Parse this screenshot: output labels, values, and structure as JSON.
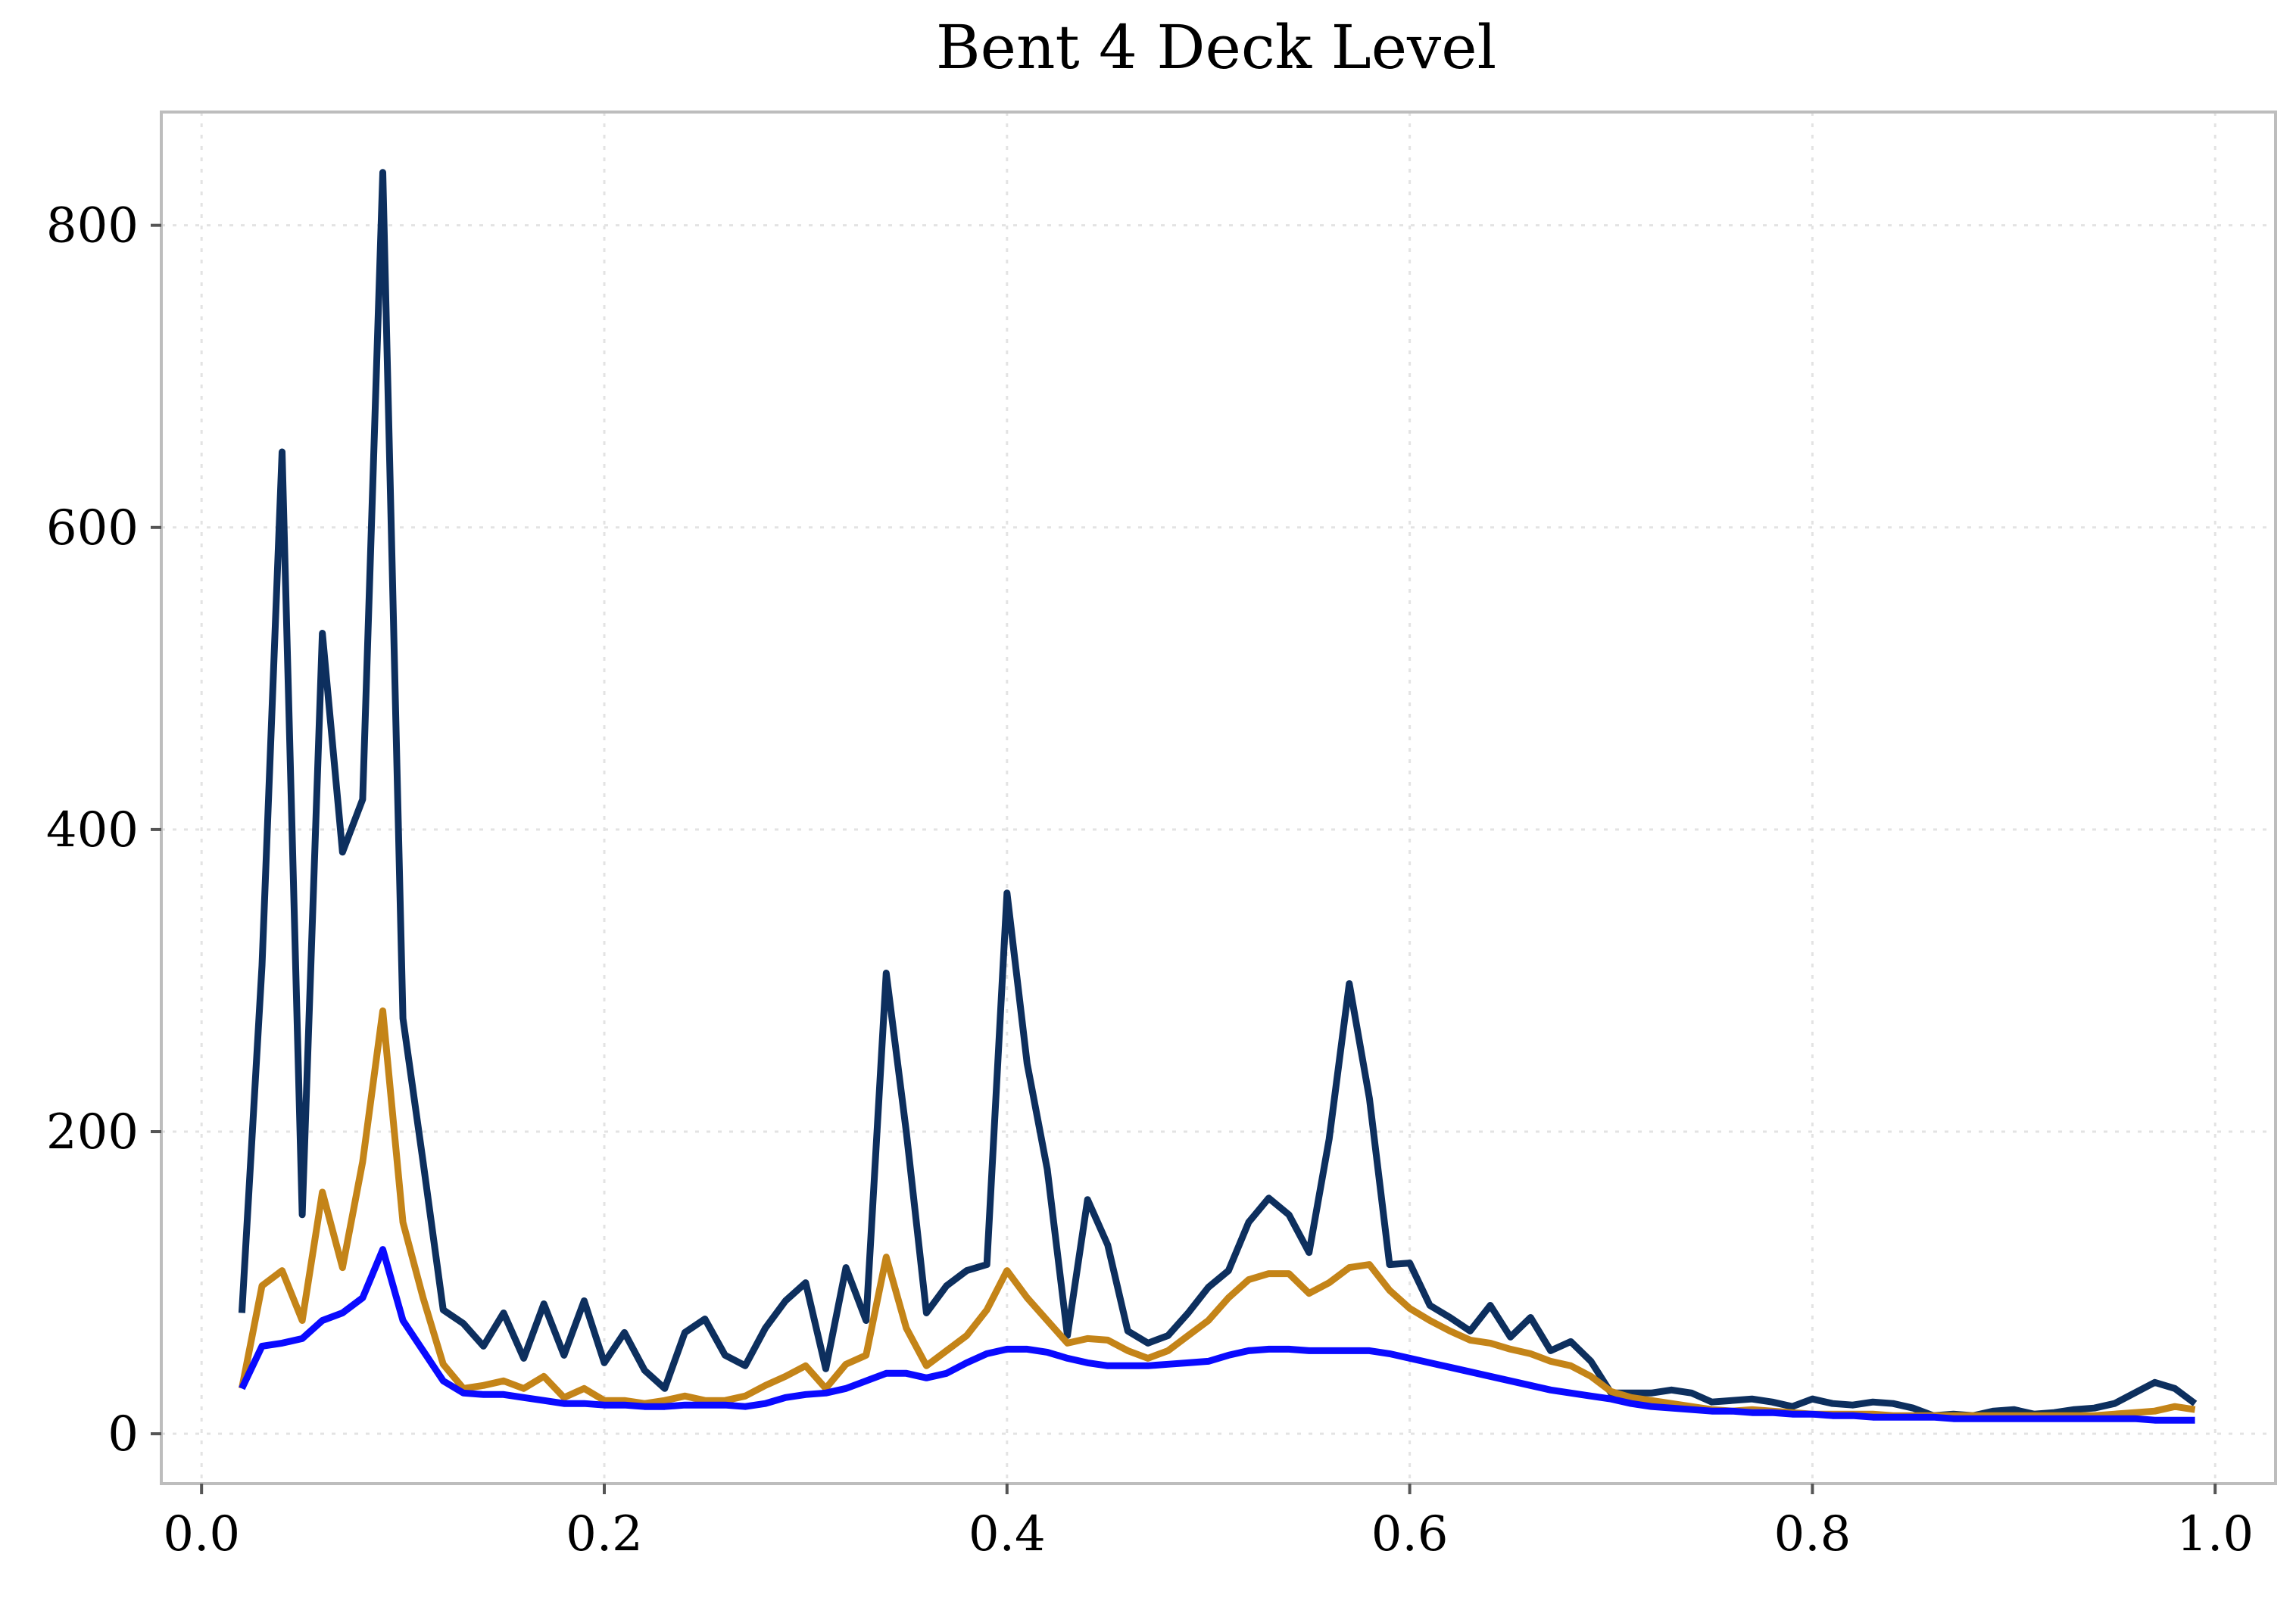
{
  "chart_data": {
    "type": "line",
    "title": "Bent 4 Deck Level",
    "xlabel": "",
    "ylabel": "",
    "xlim": [
      -0.02,
      1.03
    ],
    "ylim": [
      -33,
      875
    ],
    "x_ticks": [
      0.0,
      0.2,
      0.4,
      0.6,
      0.8,
      1.0
    ],
    "x_tick_labels": [
      "0.0",
      "0.2",
      "0.4",
      "0.6",
      "0.8",
      "1.0"
    ],
    "y_ticks": [
      0,
      200,
      400,
      600,
      800
    ],
    "y_tick_labels": [
      "0",
      "200",
      "400",
      "600",
      "800"
    ],
    "grid": true,
    "legend": "none",
    "x": [
      0.02,
      0.03,
      0.04,
      0.05,
      0.06,
      0.07,
      0.08,
      0.09,
      0.1,
      0.11,
      0.12,
      0.13,
      0.14,
      0.15,
      0.16,
      0.17,
      0.18,
      0.19,
      0.2,
      0.21,
      0.22,
      0.23,
      0.24,
      0.25,
      0.26,
      0.27,
      0.28,
      0.29,
      0.3,
      0.31,
      0.32,
      0.33,
      0.34,
      0.35,
      0.36,
      0.37,
      0.38,
      0.39,
      0.4,
      0.41,
      0.42,
      0.43,
      0.44,
      0.45,
      0.46,
      0.47,
      0.48,
      0.49,
      0.5,
      0.51,
      0.52,
      0.53,
      0.54,
      0.55,
      0.56,
      0.57,
      0.58,
      0.59,
      0.6,
      0.61,
      0.62,
      0.63,
      0.64,
      0.65,
      0.66,
      0.67,
      0.68,
      0.69,
      0.7,
      0.71,
      0.72,
      0.73,
      0.74,
      0.75,
      0.76,
      0.77,
      0.78,
      0.79,
      0.8,
      0.81,
      0.82,
      0.83,
      0.84,
      0.85,
      0.86,
      0.87,
      0.88,
      0.89,
      0.9,
      0.91,
      0.92,
      0.93,
      0.94,
      0.95,
      0.96,
      0.97,
      0.98,
      0.99
    ],
    "series": [
      {
        "color": "#0d2f5e",
        "values": [
          80,
          310,
          650,
          145,
          530,
          385,
          420,
          835,
          275,
          180,
          82,
          73,
          58,
          80,
          50,
          86,
          52,
          88,
          47,
          67,
          42,
          30,
          67,
          76,
          52,
          45,
          70,
          88,
          100,
          43,
          110,
          75,
          305,
          200,
          80,
          98,
          108,
          112,
          358,
          245,
          175,
          65,
          155,
          125,
          68,
          60,
          65,
          80,
          97,
          108,
          140,
          156,
          145,
          120,
          195,
          298,
          222,
          112,
          113,
          85,
          77,
          68,
          85,
          64,
          77,
          55,
          61,
          48,
          27,
          27,
          27,
          29,
          27,
          21,
          22,
          23,
          21,
          18,
          23,
          20,
          19,
          21,
          20,
          17,
          12,
          13,
          12,
          15,
          16,
          13,
          14,
          16,
          17,
          20,
          27,
          34,
          30,
          20
        ]
      },
      {
        "color": "#c48418",
        "values": [
          30,
          98,
          108,
          75,
          160,
          110,
          180,
          280,
          140,
          90,
          46,
          30,
          32,
          35,
          30,
          38,
          24,
          30,
          22,
          22,
          20,
          22,
          25,
          22,
          22,
          25,
          32,
          38,
          45,
          30,
          46,
          52,
          117,
          70,
          45,
          55,
          65,
          82,
          108,
          90,
          75,
          60,
          63,
          62,
          55,
          50,
          55,
          65,
          75,
          90,
          102,
          106,
          106,
          93,
          100,
          110,
          112,
          95,
          83,
          75,
          68,
          62,
          60,
          56,
          53,
          48,
          45,
          38,
          28,
          24,
          22,
          20,
          18,
          16,
          15,
          16,
          15,
          14,
          13,
          13,
          13,
          13,
          12,
          12,
          12,
          12,
          12,
          12,
          12,
          12,
          12,
          12,
          12,
          13,
          14,
          15,
          18,
          16
        ]
      },
      {
        "color": "#0a0aff",
        "values": [
          30,
          58,
          60,
          63,
          75,
          80,
          90,
          122,
          75,
          55,
          35,
          27,
          26,
          26,
          24,
          22,
          20,
          20,
          19,
          19,
          18,
          18,
          19,
          19,
          19,
          18,
          20,
          24,
          26,
          27,
          30,
          35,
          40,
          40,
          37,
          40,
          47,
          53,
          56,
          56,
          54,
          50,
          47,
          45,
          45,
          45,
          46,
          47,
          48,
          52,
          55,
          56,
          56,
          55,
          55,
          55,
          55,
          53,
          50,
          47,
          44,
          41,
          38,
          35,
          32,
          29,
          27,
          25,
          23,
          20,
          18,
          17,
          16,
          15,
          15,
          14,
          14,
          13,
          13,
          12,
          12,
          11,
          11,
          11,
          11,
          10,
          10,
          10,
          10,
          10,
          10,
          10,
          10,
          10,
          10,
          9,
          9,
          9
        ]
      }
    ]
  }
}
